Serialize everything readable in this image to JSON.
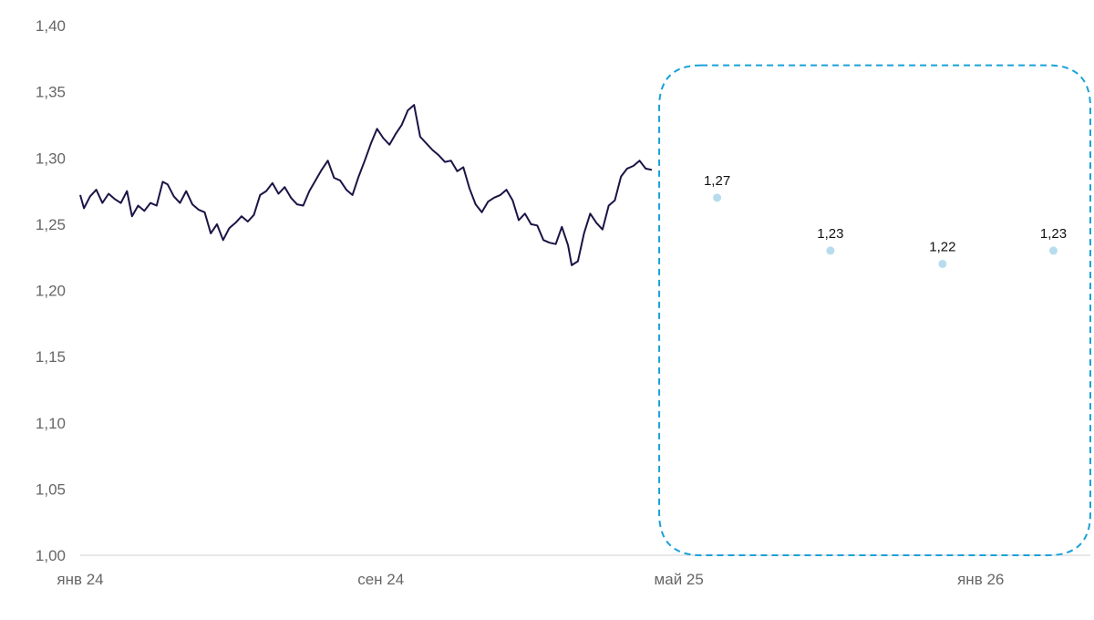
{
  "chart_data": {
    "type": "line",
    "xlim": [
      "2024-01-01",
      "2026-03-31"
    ],
    "ylim": [
      1.0,
      1.4
    ],
    "y_ticks": [
      "1,00",
      "1,05",
      "1,10",
      "1,15",
      "1,20",
      "1,25",
      "1,30",
      "1,35",
      "1,40"
    ],
    "x_ticks": [
      {
        "date": "2024-01-01",
        "label": "янв 24"
      },
      {
        "date": "2024-09-01",
        "label": "сен 24"
      },
      {
        "date": "2025-05-01",
        "label": "май 25"
      },
      {
        "date": "2026-01-01",
        "label": "янв 26"
      }
    ],
    "grid": false,
    "series": [
      {
        "kind": "history",
        "color": "#1a1446",
        "points": [
          [
            "2024-01-01",
            1.272
          ],
          [
            "2024-01-04",
            1.262
          ],
          [
            "2024-01-09",
            1.271
          ],
          [
            "2024-01-14",
            1.276
          ],
          [
            "2024-01-19",
            1.266
          ],
          [
            "2024-01-24",
            1.273
          ],
          [
            "2024-01-29",
            1.269
          ],
          [
            "2024-02-03",
            1.266
          ],
          [
            "2024-02-08",
            1.275
          ],
          [
            "2024-02-12",
            1.256
          ],
          [
            "2024-02-17",
            1.264
          ],
          [
            "2024-02-22",
            1.26
          ],
          [
            "2024-02-27",
            1.266
          ],
          [
            "2024-03-03",
            1.264
          ],
          [
            "2024-03-08",
            1.282
          ],
          [
            "2024-03-12",
            1.28
          ],
          [
            "2024-03-17",
            1.271
          ],
          [
            "2024-03-22",
            1.266
          ],
          [
            "2024-03-27",
            1.275
          ],
          [
            "2024-04-01",
            1.265
          ],
          [
            "2024-04-06",
            1.261
          ],
          [
            "2024-04-11",
            1.259
          ],
          [
            "2024-04-16",
            1.243
          ],
          [
            "2024-04-21",
            1.25
          ],
          [
            "2024-04-26",
            1.238
          ],
          [
            "2024-05-01",
            1.247
          ],
          [
            "2024-05-06",
            1.251
          ],
          [
            "2024-05-11",
            1.256
          ],
          [
            "2024-05-16",
            1.252
          ],
          [
            "2024-05-21",
            1.257
          ],
          [
            "2024-05-26",
            1.272
          ],
          [
            "2024-05-31",
            1.275
          ],
          [
            "2024-06-05",
            1.281
          ],
          [
            "2024-06-10",
            1.273
          ],
          [
            "2024-06-15",
            1.278
          ],
          [
            "2024-06-20",
            1.27
          ],
          [
            "2024-06-25",
            1.265
          ],
          [
            "2024-06-30",
            1.264
          ],
          [
            "2024-07-05",
            1.275
          ],
          [
            "2024-07-10",
            1.283
          ],
          [
            "2024-07-15",
            1.291
          ],
          [
            "2024-07-20",
            1.298
          ],
          [
            "2024-07-25",
            1.285
          ],
          [
            "2024-07-30",
            1.283
          ],
          [
            "2024-08-04",
            1.276
          ],
          [
            "2024-08-09",
            1.272
          ],
          [
            "2024-08-14",
            1.286
          ],
          [
            "2024-08-19",
            1.298
          ],
          [
            "2024-08-24",
            1.311
          ],
          [
            "2024-08-29",
            1.322
          ],
          [
            "2024-09-03",
            1.315
          ],
          [
            "2024-09-08",
            1.31
          ],
          [
            "2024-09-13",
            1.318
          ],
          [
            "2024-09-18",
            1.325
          ],
          [
            "2024-09-23",
            1.336
          ],
          [
            "2024-09-28",
            1.34
          ],
          [
            "2024-10-03",
            1.316
          ],
          [
            "2024-10-08",
            1.311
          ],
          [
            "2024-10-13",
            1.306
          ],
          [
            "2024-10-18",
            1.302
          ],
          [
            "2024-10-23",
            1.297
          ],
          [
            "2024-10-28",
            1.298
          ],
          [
            "2024-11-02",
            1.29
          ],
          [
            "2024-11-07",
            1.293
          ],
          [
            "2024-11-12",
            1.277
          ],
          [
            "2024-11-17",
            1.265
          ],
          [
            "2024-11-22",
            1.259
          ],
          [
            "2024-11-27",
            1.267
          ],
          [
            "2024-12-02",
            1.27
          ],
          [
            "2024-12-07",
            1.272
          ],
          [
            "2024-12-12",
            1.276
          ],
          [
            "2024-12-17",
            1.268
          ],
          [
            "2024-12-22",
            1.253
          ],
          [
            "2024-12-27",
            1.258
          ],
          [
            "2025-01-01",
            1.25
          ],
          [
            "2025-01-06",
            1.249
          ],
          [
            "2025-01-11",
            1.238
          ],
          [
            "2025-01-16",
            1.236
          ],
          [
            "2025-01-21",
            1.235
          ],
          [
            "2025-01-26",
            1.248
          ],
          [
            "2025-01-31",
            1.234
          ],
          [
            "2025-02-03",
            1.219
          ],
          [
            "2025-02-08",
            1.222
          ],
          [
            "2025-02-13",
            1.243
          ],
          [
            "2025-02-18",
            1.258
          ],
          [
            "2025-02-23",
            1.251
          ],
          [
            "2025-02-28",
            1.246
          ],
          [
            "2025-03-05",
            1.264
          ],
          [
            "2025-03-10",
            1.268
          ],
          [
            "2025-03-15",
            1.286
          ],
          [
            "2025-03-20",
            1.292
          ],
          [
            "2025-03-25",
            1.294
          ],
          [
            "2025-03-30",
            1.298
          ],
          [
            "2025-04-04",
            1.292
          ],
          [
            "2025-04-09",
            1.291
          ]
        ]
      },
      {
        "kind": "forecast",
        "color": "#b6dcee",
        "points": [
          {
            "date": "2025-06-01",
            "value": 1.27,
            "label": "1,27"
          },
          {
            "date": "2025-09-01",
            "value": 1.23,
            "label": "1,23"
          },
          {
            "date": "2025-12-01",
            "value": 1.22,
            "label": "1,22"
          },
          {
            "date": "2026-03-01",
            "value": 1.23,
            "label": "1,23"
          }
        ]
      }
    ],
    "annotations": [
      {
        "kind": "dashed-rounded-box",
        "color": "#1aa1d8",
        "x_from": "2025-04-15",
        "x_to": "2026-03-31",
        "y_from": 1.0,
        "y_to": 1.37
      }
    ]
  }
}
